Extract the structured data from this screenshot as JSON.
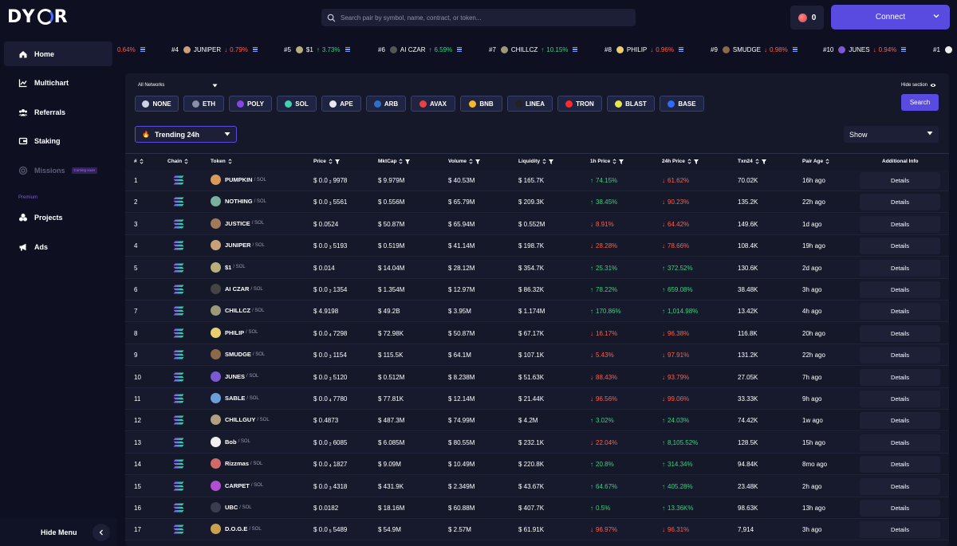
{
  "app": {
    "logo": "DYOR"
  },
  "search": {
    "placeholder": "Search pair by symbol, name, contract, or token..."
  },
  "header": {
    "flag_count": "0",
    "connect_label": "Connect"
  },
  "sidebar": {
    "items": [
      {
        "label": "Home",
        "icon": "home-icon"
      },
      {
        "label": "Multichart",
        "icon": "chart-icon"
      },
      {
        "label": "Referrals",
        "icon": "users-icon"
      },
      {
        "label": "Staking",
        "icon": "staking-icon"
      },
      {
        "label": "Missions",
        "icon": "missions-icon",
        "badge": "Coming soon"
      },
      {
        "label": "Projects",
        "icon": "projects-icon"
      },
      {
        "label": "Ads",
        "icon": "megaphone-icon"
      }
    ],
    "premium_label": "Premium",
    "hide_menu": "Hide Menu"
  },
  "ticker": [
    {
      "rank": "",
      "name": "",
      "change": "0.64%",
      "dir": "down",
      "color": ""
    },
    {
      "rank": "#4",
      "name": "JUNIPER",
      "change": "0.79%",
      "dir": "down",
      "color": "#c8a07a"
    },
    {
      "rank": "#5",
      "name": "$1",
      "change": "3.73%",
      "dir": "up",
      "color": "#b8b07a"
    },
    {
      "rank": "#6",
      "name": "AI CZAR",
      "change": "6.59%",
      "dir": "up",
      "color": "#555"
    },
    {
      "rank": "#7",
      "name": "CHILLCZ",
      "change": "10.15%",
      "dir": "up",
      "color": "#9a9a7a"
    },
    {
      "rank": "#8",
      "name": "PHILIP",
      "change": "0.96%",
      "dir": "down",
      "color": "#e8d070"
    },
    {
      "rank": "#9",
      "name": "SMUDGE",
      "change": "0.98%",
      "dir": "down",
      "color": "#8a6a4a"
    },
    {
      "rank": "#10",
      "name": "JUNES",
      "change": "0.94%",
      "dir": "down",
      "color": "#7a5ad0"
    },
    {
      "rank": "#1",
      "name": "",
      "change": "",
      "dir": "",
      "color": "#eee"
    }
  ],
  "filters": {
    "network_select": "All Networks",
    "hide_section": "Hide section",
    "chains": [
      {
        "label": "NONE",
        "color": "#cfd3e8"
      },
      {
        "label": "ETH",
        "color": "#8a8ea8"
      },
      {
        "label": "POLY",
        "color": "#8247e5"
      },
      {
        "label": "SOL",
        "color": "#3fd3b0"
      },
      {
        "label": "APE",
        "color": "#e8e8f0"
      },
      {
        "label": "ARB",
        "color": "#2d6ec8"
      },
      {
        "label": "AVAX",
        "color": "#e84142"
      },
      {
        "label": "BNB",
        "color": "#f3ba2f"
      },
      {
        "label": "LINEA",
        "color": "#222"
      },
      {
        "label": "TRON",
        "color": "#ff2a2a"
      },
      {
        "label": "BLAST",
        "color": "#e6e64a"
      },
      {
        "label": "BASE",
        "color": "#2f6bff"
      }
    ],
    "search_label": "Search",
    "trending_label": "Trending 24h",
    "show_label": "Show"
  },
  "table": {
    "headers": [
      "#",
      "Chain",
      "Token",
      "Price",
      "MktCap",
      "Volume",
      "Liquidity",
      "1h Price",
      "24h Price",
      "Txn24",
      "Pair Age",
      "Additional Info"
    ],
    "details_label": "Details",
    "rows": [
      {
        "n": "1",
        "token": "PUMPKIN",
        "pair": "/ SOL",
        "price": "$ 0.0",
        "sub": "2",
        "digits": "9978",
        "mcap": "$ 9.979M",
        "vol": "$ 40.53M",
        "liq": "$ 165.7K",
        "h1": "74.15%",
        "h1d": "up",
        "h24": "61.62%",
        "h24d": "down",
        "txn": "70.02K",
        "age": "16h ago",
        "color": "#d89a5a"
      },
      {
        "n": "2",
        "token": "NOTHING",
        "pair": "/ SOL",
        "price": "$ 0.0",
        "sub": "3",
        "digits": "5561",
        "mcap": "$ 0.556M",
        "vol": "$ 65.79M",
        "liq": "$ 209.3K",
        "h1": "38.45%",
        "h1d": "up",
        "h24": "90.23%",
        "h24d": "down",
        "txn": "135.2K",
        "age": "22h ago",
        "color": "#7ab0a0"
      },
      {
        "n": "3",
        "token": "JUSTICE",
        "pair": "/ SOL",
        "price": "$ 0.0524",
        "sub": "",
        "digits": "",
        "mcap": "$ 50.87M",
        "vol": "$ 65.94M",
        "liq": "$ 0.552M",
        "h1": "8.91%",
        "h1d": "down",
        "h24": "64.42%",
        "h24d": "down",
        "txn": "149.6K",
        "age": "1d ago",
        "color": "#a07a5a"
      },
      {
        "n": "4",
        "token": "JUNIPER",
        "pair": "/ SOL",
        "price": "$ 0.0",
        "sub": "3",
        "digits": "5193",
        "mcap": "$ 0.519M",
        "vol": "$ 41.14M",
        "liq": "$ 198.7K",
        "h1": "28.28%",
        "h1d": "down",
        "h24": "78.66%",
        "h24d": "down",
        "txn": "108.4K",
        "age": "19h ago",
        "color": "#c8a07a"
      },
      {
        "n": "5",
        "token": "$1",
        "pair": "/ SOL",
        "price": "$ 0.014",
        "sub": "",
        "digits": "",
        "mcap": "$ 14.04M",
        "vol": "$ 28.12M",
        "liq": "$ 354.7K",
        "h1": "25.31%",
        "h1d": "up",
        "h24": "372.52%",
        "h24d": "up",
        "txn": "130.6K",
        "age": "2d ago",
        "color": "#b8b07a"
      },
      {
        "n": "6",
        "token": "AI CZAR",
        "pair": "/ SOL",
        "price": "$ 0.0",
        "sub": "2",
        "digits": "1354",
        "mcap": "$ 1.354M",
        "vol": "$ 12.97M",
        "liq": "$ 86.32K",
        "h1": "78.22%",
        "h1d": "up",
        "h24": "659.08%",
        "h24d": "up",
        "txn": "38.48K",
        "age": "3h ago",
        "color": "#444"
      },
      {
        "n": "7",
        "token": "CHILLCZ",
        "pair": "/ SOL",
        "price": "$ 4.9198",
        "sub": "",
        "digits": "",
        "mcap": "$ 49.2B",
        "vol": "$ 3.95M",
        "liq": "$ 1.174M",
        "h1": "170.86%",
        "h1d": "up",
        "h24": "1,014.98%",
        "h24d": "up",
        "txn": "13.42K",
        "age": "4h ago",
        "color": "#9a9a7a"
      },
      {
        "n": "8",
        "token": "PHILIP",
        "pair": "/ SOL",
        "price": "$ 0.0",
        "sub": "4",
        "digits": "7298",
        "mcap": "$ 72.98K",
        "vol": "$ 50.87M",
        "liq": "$ 67.17K",
        "h1": "16.17%",
        "h1d": "down",
        "h24": "96.38%",
        "h24d": "down",
        "txn": "116.8K",
        "age": "20h ago",
        "color": "#e8d070"
      },
      {
        "n": "9",
        "token": "SMUDGE",
        "pair": "/ SOL",
        "price": "$ 0.0",
        "sub": "3",
        "digits": "1154",
        "mcap": "$ 115.5K",
        "vol": "$ 64.1M",
        "liq": "$ 107.1K",
        "h1": "5.43%",
        "h1d": "down",
        "h24": "97.91%",
        "h24d": "down",
        "txn": "131.2K",
        "age": "22h ago",
        "color": "#8a6a4a"
      },
      {
        "n": "10",
        "token": "JUNES",
        "pair": "/ SOL",
        "price": "$ 0.0",
        "sub": "3",
        "digits": "5120",
        "mcap": "$ 0.512M",
        "vol": "$ 8.238M",
        "liq": "$ 51.63K",
        "h1": "88.43%",
        "h1d": "down",
        "h24": "93.79%",
        "h24d": "down",
        "txn": "27.05K",
        "age": "7h ago",
        "color": "#7a5ad0"
      },
      {
        "n": "11",
        "token": "SABLE",
        "pair": "/ SOL",
        "price": "$ 0.0",
        "sub": "4",
        "digits": "7780",
        "mcap": "$ 77.81K",
        "vol": "$ 12.14M",
        "liq": "$ 21.44K",
        "h1": "96.56%",
        "h1d": "down",
        "h24": "99.06%",
        "h24d": "down",
        "txn": "33.33K",
        "age": "9h ago",
        "color": "#6aa0d8"
      },
      {
        "n": "12",
        "token": "CHILLGUY",
        "pair": "/ SOL",
        "price": "$ 0.4873",
        "sub": "",
        "digits": "",
        "mcap": "$ 487.3M",
        "vol": "$ 74.99M",
        "liq": "$ 4.2M",
        "h1": "3.02%",
        "h1d": "up",
        "h24": "24.03%",
        "h24d": "up",
        "txn": "74.42K",
        "age": "1w ago",
        "color": "#b0a080"
      },
      {
        "n": "13",
        "token": "Bob",
        "pair": "/ SOL",
        "price": "$ 0.0",
        "sub": "2",
        "digits": "6085",
        "mcap": "$ 6.085M",
        "vol": "$ 80.55M",
        "liq": "$ 232.1K",
        "h1": "22.04%",
        "h1d": "down",
        "h24": "8,105.52%",
        "h24d": "up",
        "txn": "128.5K",
        "age": "15h ago",
        "color": "#f0f0f0"
      },
      {
        "n": "14",
        "token": "Rizzmas",
        "pair": "/ SOL",
        "price": "$ 0.0",
        "sub": "4",
        "digits": "1827",
        "mcap": "$ 9.09M",
        "vol": "$ 10.49M",
        "liq": "$ 220.8K",
        "h1": "20.8%",
        "h1d": "up",
        "h24": "314.34%",
        "h24d": "up",
        "txn": "94.84K",
        "age": "8mo ago",
        "color": "#d06a6a"
      },
      {
        "n": "15",
        "token": "CARPET",
        "pair": "/ SOL",
        "price": "$ 0.0",
        "sub": "3",
        "digits": "4318",
        "mcap": "$ 431.9K",
        "vol": "$ 2.349M",
        "liq": "$ 43.67K",
        "h1": "64.67%",
        "h1d": "up",
        "h24": "405.28%",
        "h24d": "up",
        "txn": "23.48K",
        "age": "2h ago",
        "color": "#b050d0"
      },
      {
        "n": "16",
        "token": "UBC",
        "pair": "/ SOL",
        "price": "$ 0.0182",
        "sub": "",
        "digits": "",
        "mcap": "$ 18.16M",
        "vol": "$ 60.88M",
        "liq": "$ 407.7K",
        "h1": "0.5%",
        "h1d": "up",
        "h24": "13.36K%",
        "h24d": "up",
        "txn": "98.63K",
        "age": "13h ago",
        "color": "#3a3d50"
      },
      {
        "n": "17",
        "token": "D.O.G.E",
        "pair": "/ SOL",
        "price": "$ 0.0",
        "sub": "5",
        "digits": "5489",
        "mcap": "$ 54.9M",
        "vol": "$ 2.57M",
        "liq": "$ 61.91K",
        "h1": "96.97%",
        "h1d": "down",
        "h24": "96.31%",
        "h24d": "down",
        "txn": "7,914",
        "age": "3h ago",
        "color": "#c8a050"
      }
    ]
  }
}
